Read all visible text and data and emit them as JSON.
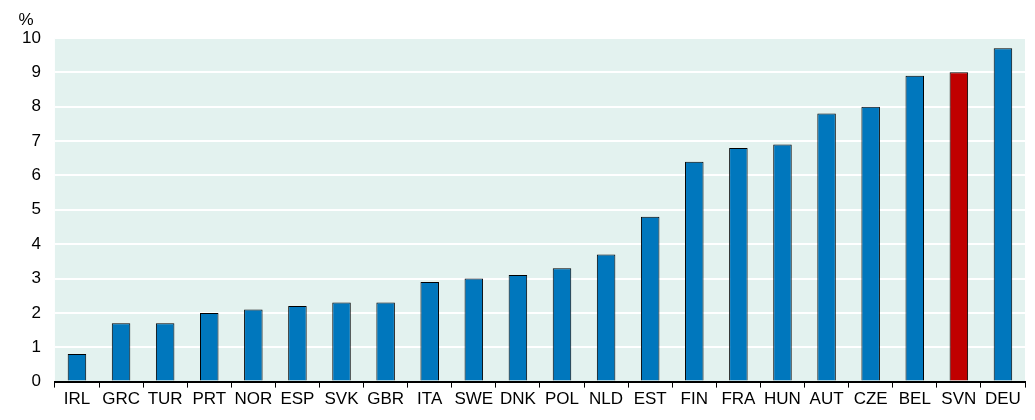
{
  "chart_data": {
    "type": "bar",
    "ylabel": "%",
    "categories": [
      "IRL",
      "GRC",
      "TUR",
      "PRT",
      "NOR",
      "ESP",
      "SVK",
      "GBR",
      "ITA",
      "SWE",
      "DNK",
      "POL",
      "NLD",
      "EST",
      "FIN",
      "FRA",
      "HUN",
      "AUT",
      "CZE",
      "BEL",
      "SVN",
      "DEU"
    ],
    "values": [
      0.8,
      1.7,
      1.7,
      2.0,
      2.1,
      2.2,
      2.3,
      2.3,
      2.9,
      3.0,
      3.1,
      3.3,
      3.7,
      4.8,
      6.4,
      6.8,
      6.9,
      7.8,
      8.0,
      8.9,
      9.0,
      9.7
    ],
    "colors": [
      "#0077bd",
      "#0077bd",
      "#0077bd",
      "#0077bd",
      "#0077bd",
      "#0077bd",
      "#0077bd",
      "#0077bd",
      "#0077bd",
      "#0077bd",
      "#0077bd",
      "#0077bd",
      "#0077bd",
      "#0077bd",
      "#0077bd",
      "#0077bd",
      "#0077bd",
      "#0077bd",
      "#0077bd",
      "#0077bd",
      "#c00000",
      "#0077bd"
    ],
    "ylim": [
      0,
      10
    ],
    "yticks": [
      0,
      1,
      2,
      3,
      4,
      5,
      6,
      7,
      8,
      9,
      10
    ],
    "grid": "y"
  }
}
